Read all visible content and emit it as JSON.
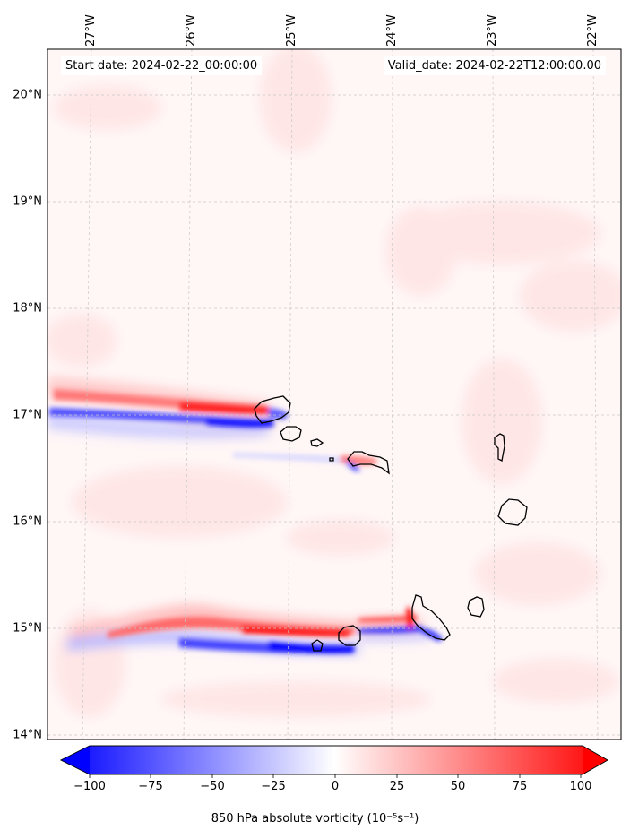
{
  "map": {
    "start_label": "Start date: 2024-02-22_00:00:00",
    "valid_label": "Valid_date: 2024-02-22T12:00:00.00",
    "lat_labels": [
      "20°N",
      "19°N",
      "18°N",
      "17°N",
      "16°N",
      "15°N",
      "14°N"
    ],
    "lon_labels": [
      "27°W",
      "26°W",
      "25°W",
      "24°W",
      "23°W",
      "22°W"
    ],
    "features": [
      "Santo Antão",
      "São Vicente",
      "Santa Luzia",
      "Branco",
      "Raso",
      "São Nicolau",
      "Sal",
      "Boa Vista",
      "Maio",
      "Santiago",
      "Fogo",
      "Brava"
    ],
    "field": "850 hPa absolute vorticity"
  },
  "colorbar": {
    "ticks": [
      "−100",
      "−75",
      "−50",
      "−25",
      "0",
      "25",
      "50",
      "75",
      "100"
    ],
    "range": [
      -100,
      100
    ],
    "title": "850 hPa absolute vorticity (10⁻⁵s⁻¹)",
    "colors": {
      "low": "#0000ff",
      "mid": "#ffffff",
      "high": "#ff0000"
    }
  }
}
